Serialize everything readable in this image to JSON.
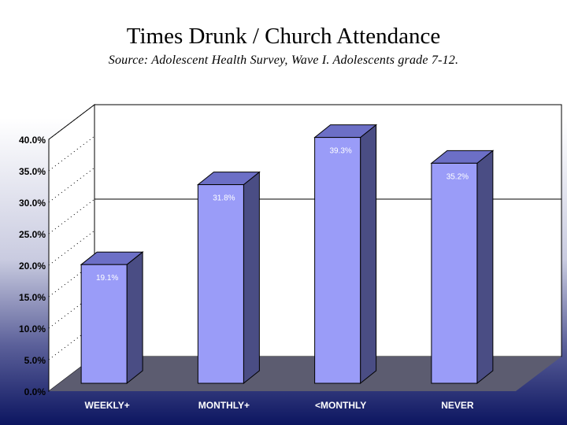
{
  "slide": {
    "title": "Times Drunk / Church Attendance",
    "subtitle": "Source: Adolescent Health Survey, Wave I. Adolescents grade 7-12."
  },
  "chart_data": {
    "type": "bar",
    "categories": [
      "WEEKLY+",
      "MONTHLY+",
      "<MONTHLY",
      "NEVER"
    ],
    "values": [
      19.1,
      31.8,
      39.3,
      35.2
    ],
    "data_labels": [
      "19.1%",
      "31.8%",
      "39.3%",
      "35.2%"
    ],
    "yticks": [
      "0.0%",
      "5.0%",
      "10.0%",
      "15.0%",
      "20.0%",
      "25.0%",
      "30.0%",
      "35.0%",
      "40.0%"
    ],
    "ylim": [
      0,
      40
    ],
    "reference_line": 25,
    "grid": false,
    "style": "3d",
    "colors": {
      "bar_front": "#9a9cf8",
      "bar_top": "#6c6fc6",
      "bar_side": "#4a4d84",
      "floor": "#5c5c70",
      "wall": "#ffffff",
      "label": "#ffffff"
    }
  }
}
